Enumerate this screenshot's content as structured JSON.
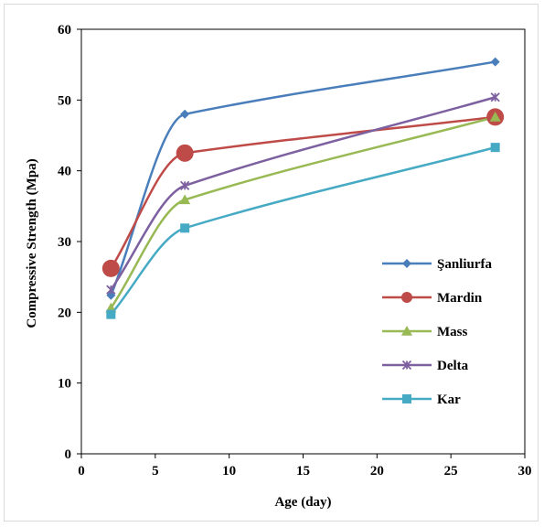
{
  "chart_data": {
    "type": "line",
    "xlabel": "Age (day)",
    "ylabel": "Compressive Strength (Mpa)",
    "xlim": [
      0,
      30
    ],
    "ylim": [
      0,
      60
    ],
    "xticks": [
      "0",
      "5",
      "10",
      "15",
      "20",
      "25",
      "30"
    ],
    "yticks": [
      "0",
      "10",
      "20",
      "30",
      "40",
      "50",
      "60"
    ],
    "grid": false,
    "legend_position": "right",
    "x": [
      2,
      7,
      28
    ],
    "series": [
      {
        "name": "Şanliurfa",
        "values": [
          22.4,
          48.0,
          55.4
        ],
        "color": "#4a7ebb",
        "marker": "diamond"
      },
      {
        "name": "Mardin",
        "values": [
          26.2,
          42.5,
          47.6
        ],
        "color": "#be4b48",
        "marker": "circle"
      },
      {
        "name": "Mass",
        "values": [
          20.6,
          35.9,
          47.6
        ],
        "color": "#98b954",
        "marker": "triangle"
      },
      {
        "name": "Delta",
        "values": [
          23.2,
          37.9,
          50.4
        ],
        "color": "#7d60a0",
        "marker": "star"
      },
      {
        "name": "Kar",
        "values": [
          19.7,
          31.9,
          43.3
        ],
        "color": "#46aac5",
        "marker": "square"
      }
    ]
  }
}
